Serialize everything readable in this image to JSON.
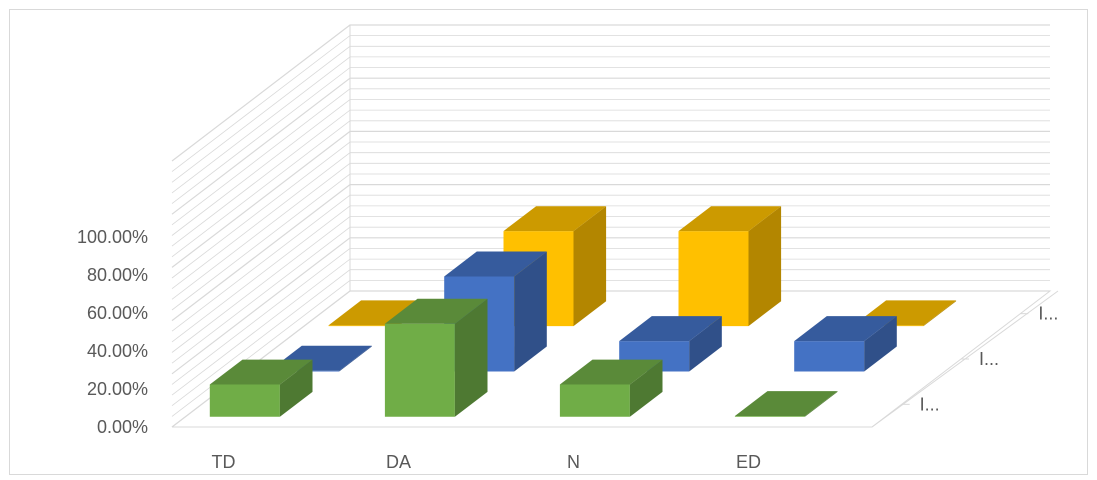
{
  "chart_data": {
    "type": "bar",
    "variant": "3d-column",
    "categories": [
      "TD",
      "DA",
      "N",
      "ED"
    ],
    "series_labels": [
      "I...",
      "I...",
      "I..."
    ],
    "series": [
      {
        "values": [
          0.17,
          0.49,
          0.17,
          0.0
        ],
        "color": "#70ad47"
      },
      {
        "values": [
          0.0,
          0.5,
          0.16,
          0.16
        ],
        "color": "#4472c4"
      },
      {
        "values": [
          0.0,
          0.5,
          0.5,
          0.0
        ],
        "color": "#ffc000"
      }
    ],
    "y_ticks": [
      "0.00%",
      "20.00%",
      "40.00%",
      "60.00%",
      "80.00%",
      "100.00%"
    ],
    "ylim": [
      0,
      1
    ],
    "grid": true
  }
}
